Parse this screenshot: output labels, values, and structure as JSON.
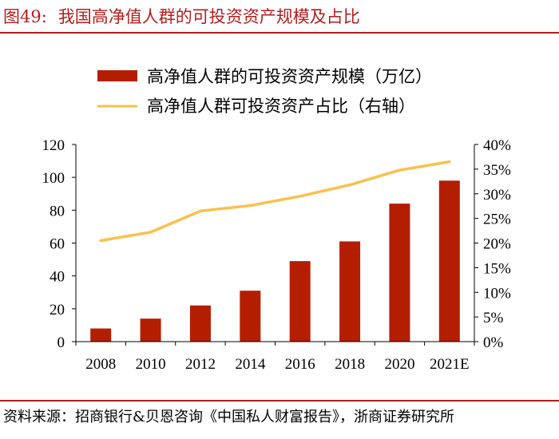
{
  "header": {
    "figure_label": "图49:",
    "title": "我国高净值人群的可投资资产规模及占比"
  },
  "source": "资料来源：招商银行&贝恩咨询《中国私人财富报告》，浙商证券研究所",
  "chart_data": {
    "type": "bar+line",
    "title": "我国高净值人群的可投资资产规模及占比",
    "categories": [
      "2008",
      "2010",
      "2012",
      "2014",
      "2016",
      "2018",
      "2020",
      "2021E"
    ],
    "series": [
      {
        "name": "高净值人群的可投资资产规模（万亿）",
        "type": "bar",
        "axis": "left",
        "color": "#b41e00",
        "values": [
          8,
          14,
          22,
          31,
          49,
          61,
          84,
          98
        ]
      },
      {
        "name": "高净值人群可投资资产占比（右轴）",
        "type": "line",
        "axis": "right",
        "color": "#fbc04b",
        "values": [
          20.5,
          22.2,
          26.5,
          27.6,
          29.5,
          31.8,
          34.8,
          36.5
        ]
      }
    ],
    "y_left": {
      "min": 0,
      "max": 120,
      "step": 20,
      "ticks": [
        "0",
        "20",
        "40",
        "60",
        "80",
        "100",
        "120"
      ]
    },
    "y_right": {
      "min": 0,
      "max": 40,
      "step": 5,
      "ticks": [
        "0%",
        "5%",
        "10%",
        "15%",
        "20%",
        "25%",
        "30%",
        "35%",
        "40%"
      ]
    },
    "grid": false,
    "legend": "top-center"
  }
}
